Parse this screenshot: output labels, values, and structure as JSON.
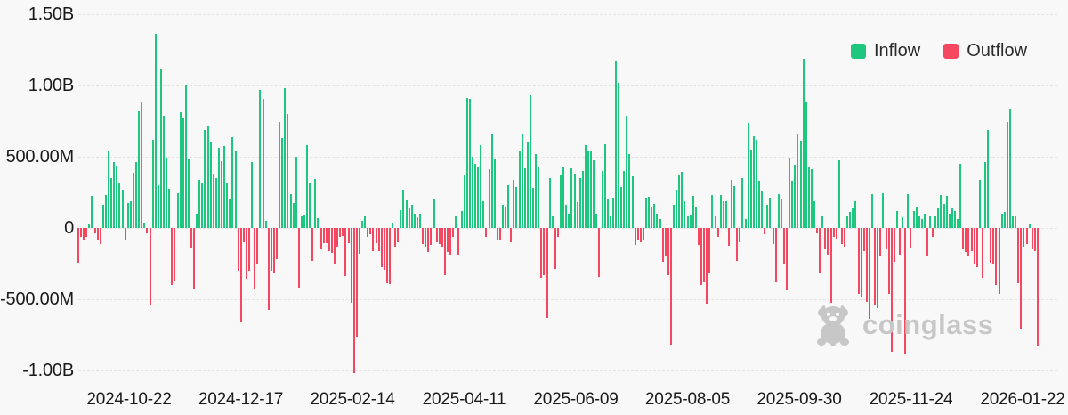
{
  "legend": {
    "inflow_label": "Inflow",
    "outflow_label": "Outflow"
  },
  "watermark": {
    "brand": "coinglass"
  },
  "chart_data": {
    "type": "bar",
    "orientation": "vertical",
    "values_unit": "millions (USD), positive = Inflow (green), negative = Outflow (red)",
    "ylim_millions": [
      -1000,
      1500
    ],
    "grid": "horizontal dashed",
    "legend_position": "top-right",
    "y_ticks": [
      "1.50B",
      "1.00B",
      "500.00M",
      "0",
      "-500.00M",
      "-1.00B"
    ],
    "x_ticks": [
      "2024-10-22",
      "2024-12-17",
      "2025-02-14",
      "2025-04-11",
      "2025-06-09",
      "2025-08-05",
      "2025-09-30",
      "2025-11-24",
      "2026-01-22"
    ],
    "colors": {
      "inflow": "#1ec77e",
      "outflow": "#f5475f",
      "axis_text": "#1a1a1a",
      "gridline": "#e4e4e4",
      "background": "#f8f8f8",
      "watermark": "#c7c7c7"
    },
    "values": [
      -245,
      -65,
      -90,
      -60,
      25,
      225,
      -35,
      -85,
      -110,
      160,
      230,
      540,
      350,
      460,
      440,
      310,
      270,
      -85,
      175,
      190,
      390,
      465,
      820,
      890,
      35,
      -35,
      -545,
      620,
      1360,
      300,
      1120,
      790,
      495,
      275,
      -400,
      -370,
      245,
      810,
      770,
      1000,
      485,
      -140,
      -430,
      100,
      335,
      320,
      690,
      715,
      600,
      380,
      350,
      560,
      470,
      575,
      310,
      205,
      640,
      540,
      -300,
      -660,
      -100,
      -355,
      -300,
      465,
      -430,
      -255,
      970,
      905,
      50,
      -577,
      -300,
      -310,
      -220,
      745,
      630,
      980,
      800,
      235,
      175,
      500,
      -420,
      90,
      95,
      580,
      310,
      -230,
      345,
      70,
      -150,
      -108,
      -104,
      -160,
      -175,
      -254,
      -129,
      -62,
      -56,
      -337,
      -108,
      -525,
      -1020,
      -764,
      -181,
      50,
      90,
      -62,
      -46,
      -160,
      -108,
      -160,
      -275,
      -296,
      -390,
      -396,
      37,
      -129,
      -98,
      125,
      270,
      195,
      145,
      165,
      100,
      75,
      100,
      -110,
      -130,
      -170,
      -120,
      205,
      -100,
      -110,
      -130,
      -330,
      -170,
      -190,
      -60,
      90,
      -185,
      120,
      370,
      915,
      905,
      500,
      450,
      430,
      580,
      190,
      -60,
      410,
      660,
      480,
      -90,
      -90,
      160,
      150,
      300,
      -100,
      340,
      290,
      540,
      660,
      420,
      600,
      930,
      280,
      520,
      430,
      -350,
      -330,
      -630,
      350,
      90,
      -285,
      -60,
      370,
      425,
      160,
      100,
      420,
      380,
      180,
      350,
      400,
      580,
      540,
      535,
      475,
      100,
      -345,
      400,
      590,
      200,
      90,
      215,
      1170,
      1020,
      290,
      400,
      790,
      520,
      360,
      -120,
      -80,
      -100,
      -90,
      215,
      220,
      150,
      170,
      100,
      60,
      -235,
      -200,
      -330,
      -820,
      160,
      270,
      375,
      395,
      190,
      90,
      95,
      225,
      150,
      -120,
      -400,
      -380,
      -530,
      -320,
      230,
      90,
      -60,
      230,
      185,
      185,
      -125,
      335,
      295,
      -230,
      -100,
      350,
      60,
      735,
      550,
      645,
      620,
      330,
      265,
      -45,
      160,
      215,
      -110,
      -380,
      235,
      205,
      -255,
      -440,
      495,
      330,
      445,
      665,
      610,
      1185,
      880,
      430,
      410,
      185,
      -35,
      -315,
      90,
      -150,
      -190,
      -525,
      -65,
      -75,
      475,
      -110,
      -130,
      80,
      110,
      140,
      185,
      -465,
      -485,
      -160,
      -520,
      -640,
      235,
      -545,
      -560,
      -200,
      245,
      -150,
      -460,
      -870,
      -240,
      120,
      -190,
      75,
      -890,
      235,
      -140,
      120,
      150,
      90,
      60,
      100,
      -195,
      90,
      -65,
      90,
      140,
      230,
      170,
      225,
      100,
      140,
      120,
      60,
      450,
      -150,
      -170,
      -200,
      -160,
      -255,
      -275,
      340,
      -350,
      465,
      690,
      -245,
      -255,
      -400,
      -465,
      100,
      115,
      745,
      835,
      90,
      80,
      -390,
      -705,
      -130,
      -110,
      30,
      -150,
      -160,
      -825
    ]
  }
}
